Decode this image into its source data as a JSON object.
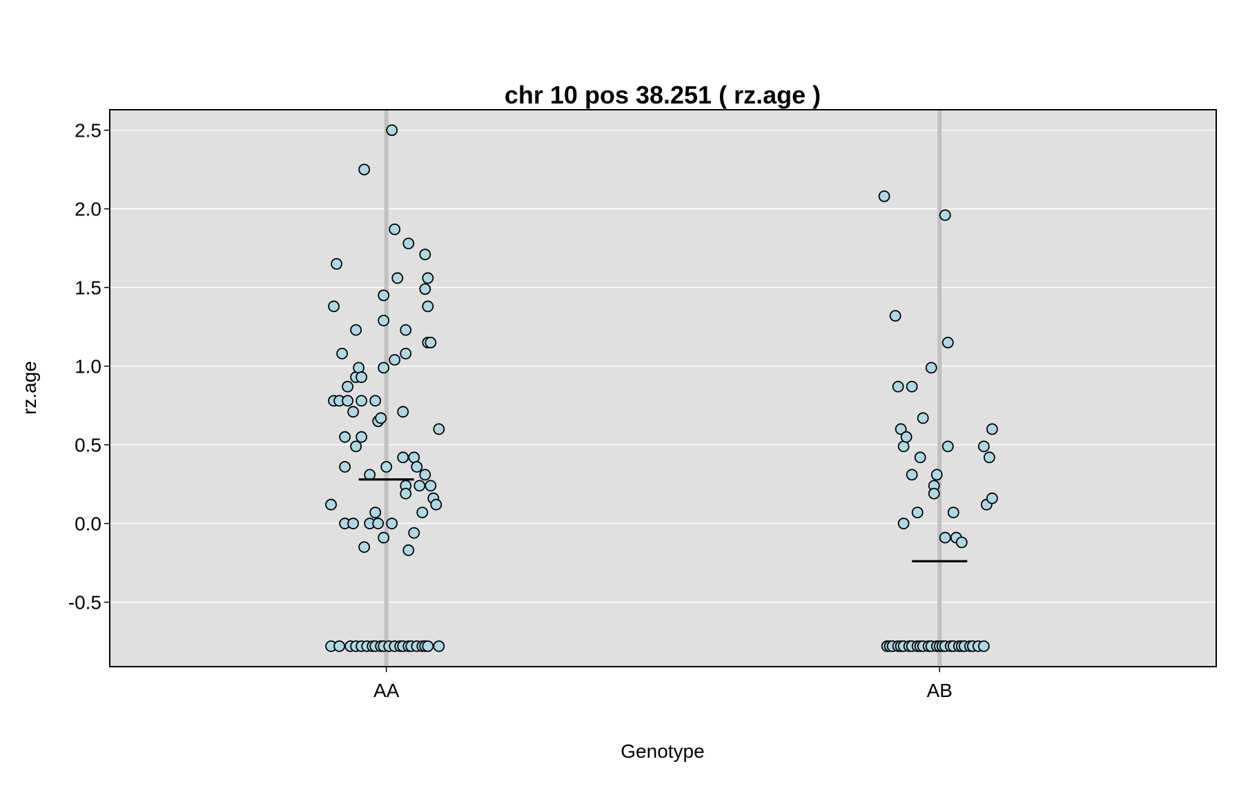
{
  "chart_data": {
    "type": "scatter",
    "title": "chr 10 pos 38.251 ( rz.age )",
    "xlabel": "Genotype",
    "ylabel": "rz.age",
    "categories": [
      "AA",
      "AB"
    ],
    "ylim": [
      -0.91,
      2.63
    ],
    "yticks": [
      -0.5,
      0.0,
      0.5,
      1.0,
      1.5,
      2.0,
      2.5
    ],
    "ytick_labels": [
      "-0.5",
      "0.0",
      "0.5",
      "1.0",
      "1.5",
      "2.0",
      "2.5"
    ],
    "grid": true,
    "background": "#e0e0e0",
    "point_color": "#add8e6",
    "groups": [
      {
        "category": "AA",
        "mean": 0.28,
        "points": [
          {
            "x": -0.2,
            "y": -0.78
          },
          {
            "x": -0.17,
            "y": -0.78
          },
          {
            "x": -0.13,
            "y": -0.78
          },
          {
            "x": -0.11,
            "y": -0.78
          },
          {
            "x": -0.09,
            "y": -0.78
          },
          {
            "x": -0.07,
            "y": -0.78
          },
          {
            "x": -0.05,
            "y": -0.78
          },
          {
            "x": -0.04,
            "y": -0.78
          },
          {
            "x": -0.02,
            "y": -0.78
          },
          {
            "x": -0.01,
            "y": -0.78
          },
          {
            "x": 0.01,
            "y": -0.78
          },
          {
            "x": 0.03,
            "y": -0.78
          },
          {
            "x": 0.05,
            "y": -0.78
          },
          {
            "x": 0.06,
            "y": -0.78
          },
          {
            "x": 0.08,
            "y": -0.78
          },
          {
            "x": 0.09,
            "y": -0.78
          },
          {
            "x": 0.11,
            "y": -0.78
          },
          {
            "x": 0.13,
            "y": -0.78
          },
          {
            "x": 0.14,
            "y": -0.78
          },
          {
            "x": 0.15,
            "y": -0.78
          },
          {
            "x": 0.19,
            "y": -0.78
          },
          {
            "x": -0.2,
            "y": 0.12
          },
          {
            "x": -0.19,
            "y": 1.38
          },
          {
            "x": -0.19,
            "y": 0.78
          },
          {
            "x": -0.18,
            "y": 1.65
          },
          {
            "x": -0.17,
            "y": 0.78
          },
          {
            "x": -0.16,
            "y": 1.08
          },
          {
            "x": -0.15,
            "y": 0.55
          },
          {
            "x": -0.15,
            "y": 0.36
          },
          {
            "x": -0.15,
            "y": 0.0
          },
          {
            "x": -0.14,
            "y": 0.87
          },
          {
            "x": -0.14,
            "y": 0.78
          },
          {
            "x": -0.12,
            "y": 0.0
          },
          {
            "x": -0.12,
            "y": 0.71
          },
          {
            "x": -0.11,
            "y": 0.93
          },
          {
            "x": -0.11,
            "y": 1.23
          },
          {
            "x": -0.11,
            "y": 0.49
          },
          {
            "x": -0.1,
            "y": 0.99
          },
          {
            "x": -0.09,
            "y": 0.78
          },
          {
            "x": -0.09,
            "y": 0.93
          },
          {
            "x": -0.09,
            "y": 0.55
          },
          {
            "x": -0.08,
            "y": -0.15
          },
          {
            "x": -0.08,
            "y": 2.25
          },
          {
            "x": -0.06,
            "y": 0.31
          },
          {
            "x": -0.06,
            "y": 0.0
          },
          {
            "x": -0.04,
            "y": 0.78
          },
          {
            "x": -0.04,
            "y": 0.07
          },
          {
            "x": -0.03,
            "y": 0.0
          },
          {
            "x": -0.03,
            "y": 0.65
          },
          {
            "x": -0.02,
            "y": 0.67
          },
          {
            "x": -0.01,
            "y": 1.45
          },
          {
            "x": -0.01,
            "y": 0.99
          },
          {
            "x": -0.01,
            "y": 1.29
          },
          {
            "x": -0.01,
            "y": -0.09
          },
          {
            "x": 0.0,
            "y": 0.36
          },
          {
            "x": 0.02,
            "y": 2.5
          },
          {
            "x": 0.02,
            "y": 0.0
          },
          {
            "x": 0.03,
            "y": 1.87
          },
          {
            "x": 0.03,
            "y": 1.04
          },
          {
            "x": 0.04,
            "y": 1.56
          },
          {
            "x": 0.06,
            "y": 0.71
          },
          {
            "x": 0.06,
            "y": 0.42
          },
          {
            "x": 0.07,
            "y": 0.24
          },
          {
            "x": 0.07,
            "y": 0.19
          },
          {
            "x": 0.07,
            "y": 1.23
          },
          {
            "x": 0.07,
            "y": 1.08
          },
          {
            "x": 0.08,
            "y": 1.78
          },
          {
            "x": 0.08,
            "y": -0.17
          },
          {
            "x": 0.1,
            "y": 0.42
          },
          {
            "x": 0.1,
            "y": -0.06
          },
          {
            "x": 0.11,
            "y": 0.36
          },
          {
            "x": 0.12,
            "y": 0.24
          },
          {
            "x": 0.13,
            "y": 0.07
          },
          {
            "x": 0.14,
            "y": 0.31
          },
          {
            "x": 0.14,
            "y": 1.49
          },
          {
            "x": 0.14,
            "y": 1.71
          },
          {
            "x": 0.15,
            "y": 1.15
          },
          {
            "x": 0.15,
            "y": 1.56
          },
          {
            "x": 0.15,
            "y": 1.38
          },
          {
            "x": 0.16,
            "y": 1.15
          },
          {
            "x": 0.16,
            "y": 0.24
          },
          {
            "x": 0.17,
            "y": 0.16
          },
          {
            "x": 0.18,
            "y": 0.12
          },
          {
            "x": 0.19,
            "y": 0.6
          }
        ]
      },
      {
        "category": "AB",
        "mean": -0.24,
        "points": [
          {
            "x": -0.19,
            "y": -0.78
          },
          {
            "x": -0.18,
            "y": -0.78
          },
          {
            "x": -0.17,
            "y": -0.78
          },
          {
            "x": -0.15,
            "y": -0.78
          },
          {
            "x": -0.14,
            "y": -0.78
          },
          {
            "x": -0.13,
            "y": -0.78
          },
          {
            "x": -0.11,
            "y": -0.78
          },
          {
            "x": -0.1,
            "y": -0.78
          },
          {
            "x": -0.08,
            "y": -0.78
          },
          {
            "x": -0.07,
            "y": -0.78
          },
          {
            "x": -0.06,
            "y": -0.78
          },
          {
            "x": -0.04,
            "y": -0.78
          },
          {
            "x": -0.03,
            "y": -0.78
          },
          {
            "x": -0.01,
            "y": -0.78
          },
          {
            "x": 0.0,
            "y": -0.78
          },
          {
            "x": 0.01,
            "y": -0.78
          },
          {
            "x": 0.02,
            "y": -0.78
          },
          {
            "x": 0.04,
            "y": -0.78
          },
          {
            "x": 0.05,
            "y": -0.78
          },
          {
            "x": 0.07,
            "y": -0.78
          },
          {
            "x": 0.08,
            "y": -0.78
          },
          {
            "x": 0.09,
            "y": -0.78
          },
          {
            "x": 0.11,
            "y": -0.78
          },
          {
            "x": 0.12,
            "y": -0.78
          },
          {
            "x": 0.14,
            "y": -0.78
          },
          {
            "x": 0.16,
            "y": -0.78
          },
          {
            "x": -0.2,
            "y": 2.08
          },
          {
            "x": -0.16,
            "y": 1.32
          },
          {
            "x": -0.15,
            "y": 0.87
          },
          {
            "x": -0.14,
            "y": 0.6
          },
          {
            "x": -0.13,
            "y": 0.0
          },
          {
            "x": -0.13,
            "y": 0.49
          },
          {
            "x": -0.12,
            "y": 0.55
          },
          {
            "x": -0.1,
            "y": 0.31
          },
          {
            "x": -0.1,
            "y": 0.87
          },
          {
            "x": -0.08,
            "y": 0.07
          },
          {
            "x": -0.07,
            "y": 0.42
          },
          {
            "x": -0.06,
            "y": 0.67
          },
          {
            "x": -0.03,
            "y": 0.99
          },
          {
            "x": -0.02,
            "y": 0.24
          },
          {
            "x": -0.02,
            "y": 0.19
          },
          {
            "x": -0.01,
            "y": 0.31
          },
          {
            "x": 0.02,
            "y": -0.09
          },
          {
            "x": 0.02,
            "y": 1.96
          },
          {
            "x": 0.03,
            "y": 1.15
          },
          {
            "x": 0.03,
            "y": 0.49
          },
          {
            "x": 0.05,
            "y": 0.07
          },
          {
            "x": 0.06,
            "y": -0.09
          },
          {
            "x": 0.08,
            "y": -0.12
          },
          {
            "x": 0.16,
            "y": 0.49
          },
          {
            "x": 0.17,
            "y": 0.12
          },
          {
            "x": 0.18,
            "y": 0.42
          },
          {
            "x": 0.19,
            "y": 0.6
          },
          {
            "x": 0.19,
            "y": 0.16
          }
        ]
      }
    ]
  }
}
